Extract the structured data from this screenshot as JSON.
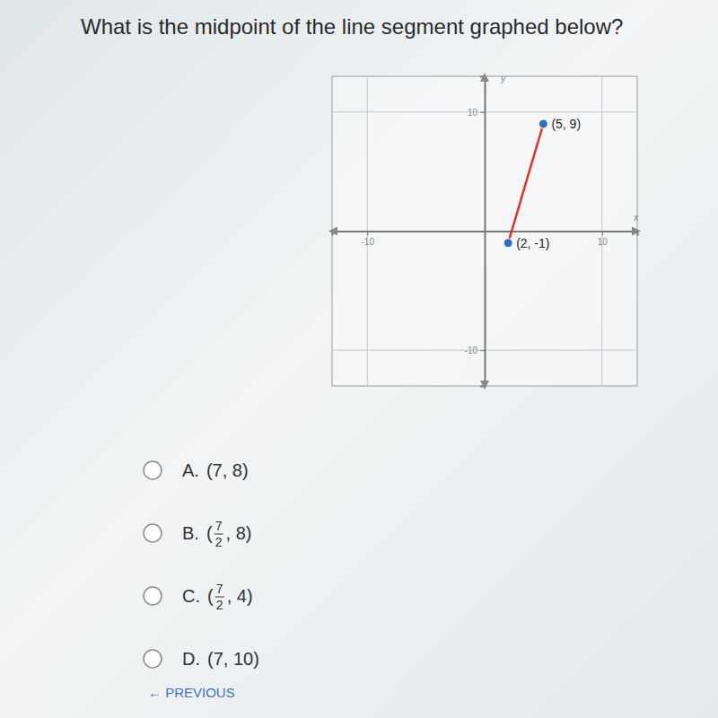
{
  "question": "What is the midpoint of the line segment graphed below?",
  "chart_data": {
    "type": "line",
    "x_label": "x",
    "y_label": "y",
    "x": [
      2,
      5
    ],
    "values": [
      -1,
      9
    ],
    "value_labels": [
      "(2, -1)",
      "(5, 9)"
    ],
    "data_labels": true,
    "color": "#e2312b",
    "marker": "circle",
    "xlim": [
      -13,
      13
    ],
    "ylim": [
      -13,
      13
    ],
    "xticks": [
      -10,
      10
    ],
    "yticks": [
      -10,
      10
    ],
    "grid": true
  },
  "options": [
    {
      "letter": "A.",
      "parts": [
        "(7, 8)"
      ]
    },
    {
      "letter": "B.",
      "parts": [
        "(",
        {
          "num": "7",
          "den": "2"
        },
        ", 8)"
      ]
    },
    {
      "letter": "C.",
      "parts": [
        "(",
        {
          "num": "7",
          "den": "2"
        },
        ", 4)"
      ]
    },
    {
      "letter": "D.",
      "parts": [
        "(7, 10)"
      ]
    }
  ],
  "nav": {
    "previous": "← PREVIOUS"
  }
}
